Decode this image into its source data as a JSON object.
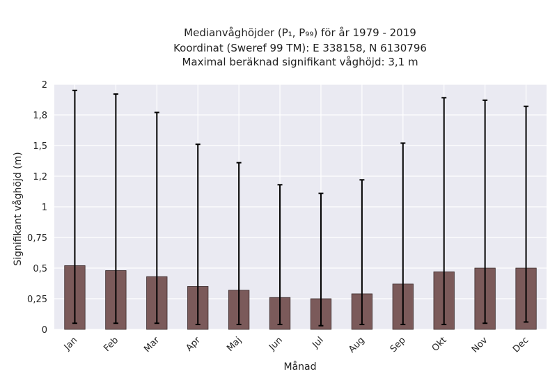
{
  "chart_data": {
    "type": "bar",
    "title_lines": [
      "Medianvåghöjder (P₁, P₉₉) för år 1979 - 2019",
      "Koordinat (Sweref 99 TM): E 338158, N 6130796",
      "Maximal beräknad signifikant våghöjd: 3,1 m"
    ],
    "xlabel": "Månad",
    "ylabel": "Signifikant våghöjd (m)",
    "categories": [
      "Jan",
      "Feb",
      "Mar",
      "Apr",
      "Maj",
      "Jun",
      "Jul",
      "Aug",
      "Sep",
      "Okt",
      "Nov",
      "Dec"
    ],
    "values": [
      0.52,
      0.48,
      0.43,
      0.35,
      0.32,
      0.26,
      0.25,
      0.29,
      0.37,
      0.47,
      0.5,
      0.5
    ],
    "error_low": [
      0.05,
      0.05,
      0.05,
      0.04,
      0.04,
      0.04,
      0.03,
      0.04,
      0.04,
      0.04,
      0.05,
      0.06
    ],
    "error_high": [
      1.95,
      1.92,
      1.77,
      1.51,
      1.36,
      1.18,
      1.11,
      1.22,
      1.52,
      1.89,
      1.87,
      1.82
    ],
    "ylim": [
      0,
      2
    ],
    "yticks": [
      0,
      0.25,
      0.5,
      0.75,
      1,
      1.25,
      1.5,
      1.75,
      2
    ],
    "ytick_labels": [
      "0",
      "0,25",
      "0,5",
      "0,75",
      "1",
      "1,2",
      "1,5",
      "1,8",
      "2"
    ],
    "grid": true,
    "bar_color": "#7b5a5a",
    "bar_edge_color": "#3a2a2a",
    "error_color": "#000000",
    "background_color": "#eaeaf2",
    "grid_color": "#ffffff"
  }
}
